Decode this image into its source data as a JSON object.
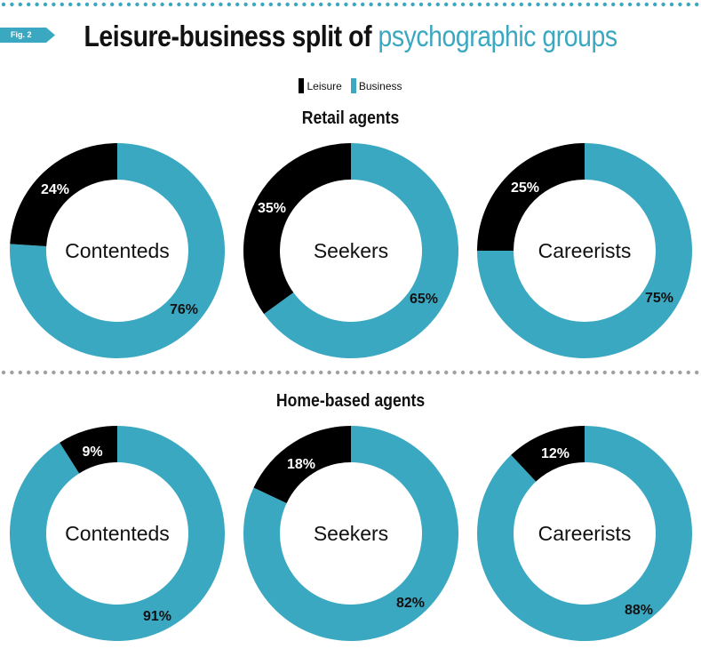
{
  "figure_tag": "Fig. 2",
  "title_part1": "Leisure-business split of ",
  "title_part2": "psychographic groups",
  "colors": {
    "leisure": "#000000",
    "business": "#3ba8c1",
    "accent": "#3ba8c1",
    "dots": "#3ba8c1",
    "divider": "#a0a0a0"
  },
  "legend": [
    {
      "label": "Leisure",
      "color": "#000000"
    },
    {
      "label": "Business",
      "color": "#3ba8c1"
    }
  ],
  "chart_data": [
    {
      "type": "pie",
      "style": "donut",
      "title": "Retail agents",
      "categories": [
        "Contenteds",
        "Seekers",
        "Careerists"
      ],
      "series": [
        {
          "name": "Leisure",
          "values": [
            24,
            35,
            25
          ]
        },
        {
          "name": "Business",
          "values": [
            76,
            65,
            75
          ]
        }
      ],
      "unit": "%"
    },
    {
      "type": "pie",
      "style": "donut",
      "title": "Home-based agents",
      "categories": [
        "Contenteds",
        "Seekers",
        "Careerists"
      ],
      "series": [
        {
          "name": "Leisure",
          "values": [
            9,
            18,
            12
          ]
        },
        {
          "name": "Business",
          "values": [
            91,
            82,
            88
          ]
        }
      ],
      "unit": "%"
    }
  ]
}
